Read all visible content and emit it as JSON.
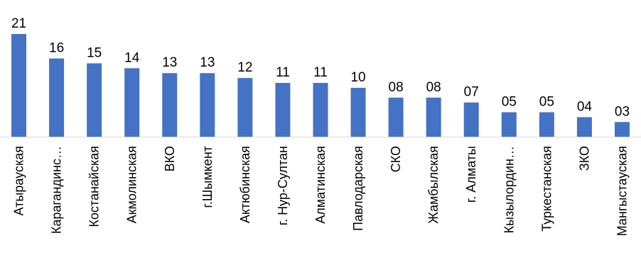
{
  "chart_data": {
    "type": "bar",
    "categories": [
      "Атырауская",
      "Карагандинс…",
      "Костанайская",
      "Акмолинская",
      "ВКО",
      "г.Шымкент",
      "Актюбинская",
      "г. Нур-Султан",
      "Алматинская",
      "Павлодарская",
      "СКО",
      "Жамбылская",
      "г. Алматы",
      "Кызылордин…",
      "Туркестанская",
      "ЗКО",
      "Мангыстауская"
    ],
    "values": [
      21,
      16,
      15,
      14,
      13,
      13,
      12,
      11,
      11,
      10,
      8,
      8,
      7,
      5,
      5,
      4,
      3
    ],
    "value_labels": [
      "21",
      "16",
      "15",
      "14",
      "13",
      "13",
      "12",
      "11",
      "11",
      "10",
      "08",
      "08",
      "07",
      "05",
      "05",
      "04",
      "03"
    ],
    "title": "",
    "xlabel": "",
    "ylabel": "",
    "ylim": [
      0,
      21
    ],
    "grid": false,
    "legend": "none",
    "bar_color": "#4472C4",
    "axis_color": "#D9D9D9"
  }
}
